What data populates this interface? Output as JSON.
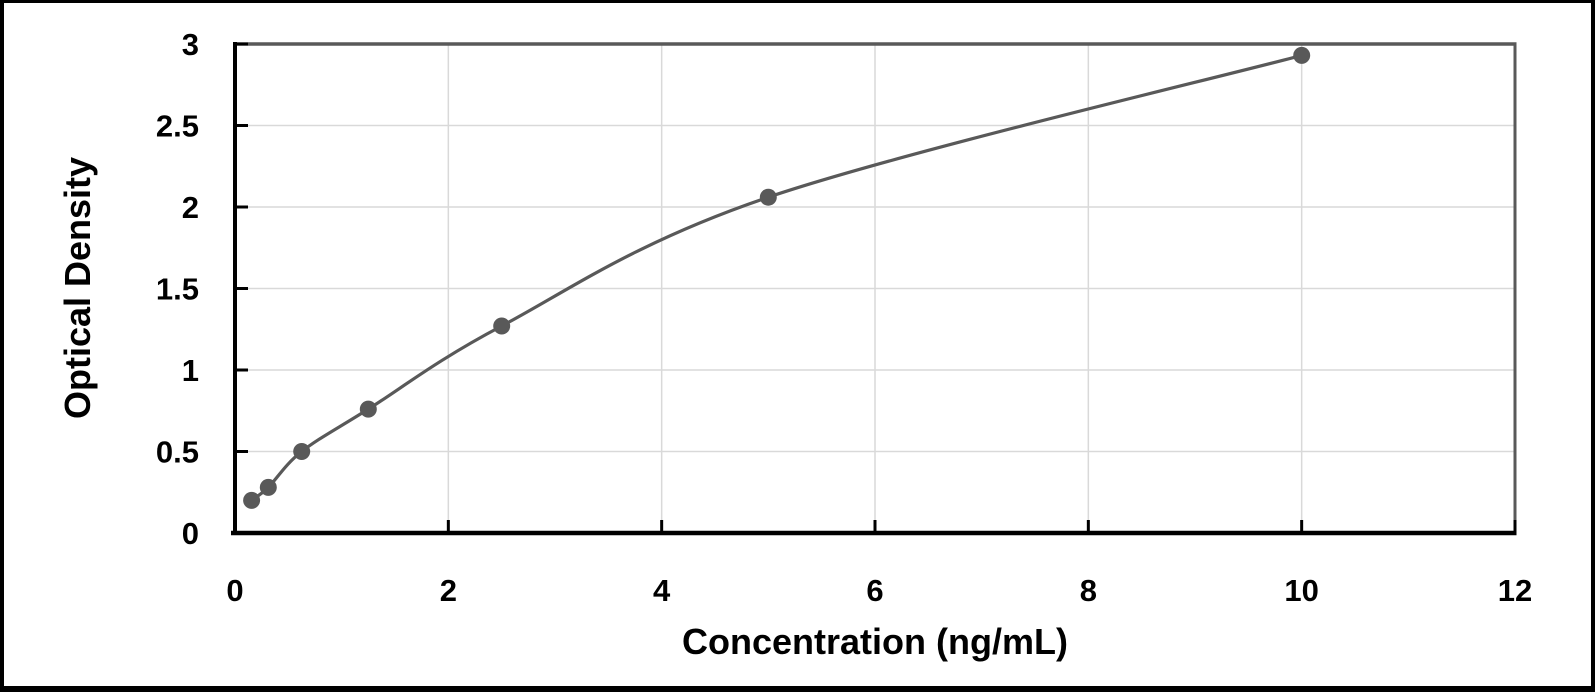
{
  "chart_data": {
    "type": "scatter",
    "title": "",
    "xlabel": "Concentration (ng/mL)",
    "ylabel": "Optical Density",
    "x": [
      0.156,
      0.312,
      0.625,
      1.25,
      2.5,
      5,
      10
    ],
    "y": [
      0.2,
      0.28,
      0.5,
      0.76,
      1.27,
      2.06,
      2.93
    ],
    "xlim": [
      0,
      12
    ],
    "ylim": [
      0,
      3
    ],
    "x_ticks": [
      0,
      2,
      4,
      6,
      8,
      10,
      12
    ],
    "y_ticks": [
      0,
      0.5,
      1,
      1.5,
      2,
      2.5,
      3
    ],
    "x_tick_labels": [
      "0",
      "2",
      "4",
      "6",
      "8",
      "10",
      "12"
    ],
    "y_tick_labels": [
      "0",
      "0.5",
      "1",
      "1.5",
      "2",
      "2.5",
      "3"
    ],
    "grid": true,
    "legend": false,
    "smooth_line": true,
    "colors": {
      "line": "#595959",
      "marker": "#595959",
      "axis": "#000000",
      "plot_border": "#595959",
      "gridline": "#d9d9d9",
      "background": "#ffffff",
      "frame_border": "#000000"
    }
  }
}
